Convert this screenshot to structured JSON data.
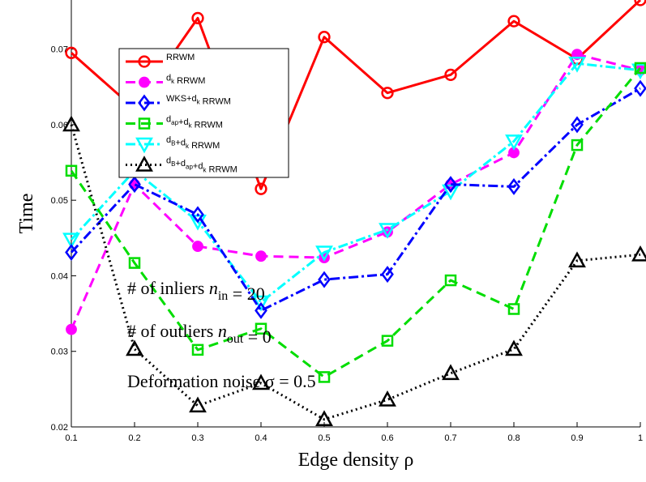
{
  "chart_data": {
    "type": "line",
    "xlabel": "Edge density ρ",
    "ylabel": "Time",
    "xlim": [
      0.1,
      1.0
    ],
    "ylim": [
      0.02,
      0.0765
    ],
    "x": [
      0.1,
      0.2,
      0.3,
      0.4,
      0.5,
      0.6,
      0.7,
      0.8,
      0.9,
      1.0
    ],
    "x_ticks": [
      0.1,
      0.2,
      0.3,
      0.4,
      0.5,
      0.6,
      0.7,
      0.8,
      0.9,
      1.0
    ],
    "x_tick_labels": [
      "0.1",
      "0.2",
      "0.3",
      "0.4",
      "0.5",
      "0.6",
      "0.7",
      "0.8",
      "0.9",
      "1"
    ],
    "y_ticks": [
      0.02,
      0.03,
      0.04,
      0.05,
      0.06,
      0.07
    ],
    "y_tick_labels": [
      "0.02",
      "0.03",
      "0.04",
      "0.05",
      "0.06",
      "0.07"
    ],
    "grid": false,
    "legend_position": "top-left",
    "series": [
      {
        "name": "RRWM",
        "legend_parts": [
          {
            "t": "RRWM"
          }
        ],
        "color": "#ff0000",
        "dash": "",
        "marker": "circle",
        "values": [
          0.0695,
          0.0621,
          0.0741,
          0.0515,
          0.0716,
          0.0642,
          0.0666,
          0.0737,
          0.0687,
          0.0765
        ]
      },
      {
        "name": "dk RRWM",
        "legend_parts": [
          {
            "t": "d"
          },
          {
            "t": "k",
            "sub": true
          },
          {
            "t": " RRWM"
          }
        ],
        "color": "#ff00ff",
        "dash": "12,7",
        "marker": "dot",
        "values": [
          0.0329,
          0.0521,
          0.0439,
          0.0426,
          0.0424,
          0.0458,
          0.0521,
          0.0563,
          0.0693,
          0.0672
        ]
      },
      {
        "name": "WKS+dk RRWM",
        "legend_parts": [
          {
            "t": "WKS+d"
          },
          {
            "t": "k",
            "sub": true
          },
          {
            "t": " RRWM"
          }
        ],
        "color": "#0000ff",
        "dash": "12,4,3,4",
        "marker": "diamond",
        "values": [
          0.0431,
          0.0521,
          0.0481,
          0.0354,
          0.0395,
          0.0402,
          0.0521,
          0.0518,
          0.06,
          0.0648
        ]
      },
      {
        "name": "dap+dk RRWM",
        "legend_parts": [
          {
            "t": "d"
          },
          {
            "t": "ap",
            "sub": true
          },
          {
            "t": "+d"
          },
          {
            "t": "k",
            "sub": true
          },
          {
            "t": " RRWM"
          }
        ],
        "color": "#00dd00",
        "dash": "12,7",
        "marker": "square",
        "values": [
          0.0539,
          0.0417,
          0.0302,
          0.033,
          0.0266,
          0.0314,
          0.0394,
          0.0356,
          0.0573,
          0.0675
        ]
      },
      {
        "name": "dB+dk RRWM",
        "legend_parts": [
          {
            "t": "d"
          },
          {
            "t": "B",
            "sub": true
          },
          {
            "t": "+d"
          },
          {
            "t": "k",
            "sub": true
          },
          {
            "t": " RRWM"
          }
        ],
        "color": "#00ffff",
        "dash": "12,4,3,4",
        "marker": "triangle-down",
        "values": [
          0.0448,
          0.0539,
          0.0472,
          0.0365,
          0.0431,
          0.0461,
          0.0512,
          0.0578,
          0.0681,
          0.0672
        ]
      },
      {
        "name": "dB+dap+dk RRWM",
        "legend_parts": [
          {
            "t": "d"
          },
          {
            "t": "B",
            "sub": true
          },
          {
            "t": "+d"
          },
          {
            "t": "ap",
            "sub": true
          },
          {
            "t": "+d"
          },
          {
            "t": "k",
            "sub": true
          },
          {
            "t": " RRWM"
          }
        ],
        "color": "#000000",
        "dash": "2,4",
        "marker": "triangle-up",
        "values": [
          0.06,
          0.0303,
          0.0228,
          0.0258,
          0.021,
          0.0236,
          0.0271,
          0.0303,
          0.042,
          0.0428
        ]
      }
    ],
    "annotations": [
      {
        "parts": [
          {
            "t": "# of inliers "
          },
          {
            "t": "n",
            "italic": true
          },
          {
            "t": "in",
            "sub": true
          },
          {
            "t": " = 20"
          }
        ]
      },
      {
        "parts": [
          {
            "t": "# of outliers "
          },
          {
            "t": "n",
            "italic": true
          },
          {
            "t": "out",
            "sub": true
          },
          {
            "t": " = 0"
          }
        ]
      },
      {
        "parts": [
          {
            "t": "Deformation noise σ = 0.5"
          }
        ]
      }
    ]
  }
}
